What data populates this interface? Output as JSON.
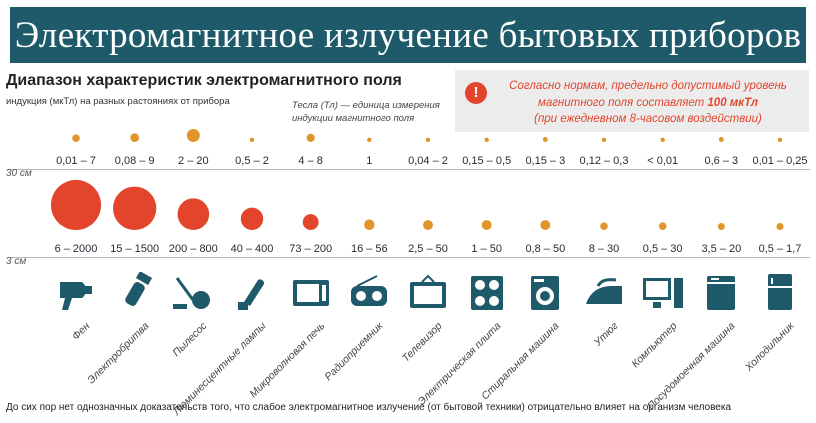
{
  "header": {
    "title": "Электромагнитное излучение бытовых приборов",
    "subtitle": "Диапазон характеристик электромагнитного поля",
    "subnote": "индукция (мкТл) на разных растояниях от прибора",
    "unit_note": "Тесла (Тл) — единица измерения индукции магнитного поля"
  },
  "norm": {
    "icon": "exclamation-icon",
    "line1": "Согласно нормам, предельно допустимый уровень",
    "line2_prefix": "магнитного поля составляет",
    "line2_value": "100 мкТл",
    "line3": "(при ежедневном 8-часовом воздействии)"
  },
  "colors": {
    "banner": "#1f5a6a",
    "accent": "#e2452c",
    "dot_far": "#e0952a"
  },
  "chart_data": {
    "type": "scatter",
    "title": "Диапазон характеристик электромагнитного поля",
    "unit": "мкТл",
    "rows": [
      "30 см",
      "3 см"
    ],
    "categories": [
      "Фен",
      "Электробритва",
      "Пылесос",
      "Люминесцентные лампы",
      "Микроволновая печь",
      "Радиоприемник",
      "Телевизор",
      "Электрическая плита",
      "Стиральная машина",
      "Утюг",
      "Компьютер",
      "Посудомоечная машина",
      "Холодильник"
    ],
    "series": [
      {
        "name": "30 см",
        "labels": [
          "0,01 – 7",
          "0,08 – 9",
          "2 – 20",
          "0,5 – 2",
          "4 – 8",
          "1",
          "0,04 – 2",
          "0,15 – 0,5",
          "0,15 – 3",
          "0,12 – 0,3",
          "< 0,01",
          "0,6 – 3",
          "0,01 – 0,25"
        ],
        "min": [
          0.01,
          0.08,
          2,
          0.5,
          4,
          1,
          0.04,
          0.15,
          0.15,
          0.12,
          0,
          0.6,
          0.01
        ],
        "max": [
          7,
          9,
          20,
          2,
          8,
          1,
          2,
          0.5,
          3,
          0.3,
          0.01,
          3,
          0.25
        ]
      },
      {
        "name": "3 см",
        "labels": [
          "6 – 2000",
          "15 – 1500",
          "200 – 800",
          "40 – 400",
          "73 – 200",
          "16 – 56",
          "2,5 – 50",
          "1 – 50",
          "0,8 – 50",
          "8 – 30",
          "0,5 – 30",
          "3,5 – 20",
          "0,5 – 1,7"
        ],
        "min": [
          6,
          15,
          200,
          40,
          73,
          16,
          2.5,
          1,
          0.8,
          8,
          0.5,
          3.5,
          0.5
        ],
        "max": [
          2000,
          1500,
          800,
          400,
          200,
          56,
          50,
          50,
          50,
          30,
          30,
          20,
          1.7
        ]
      }
    ]
  },
  "devices": [
    {
      "label": "Фен",
      "icon": "hair-dryer-icon"
    },
    {
      "label": "Электробритва",
      "icon": "electric-shaver-icon"
    },
    {
      "label": "Пылесос",
      "icon": "vacuum-cleaner-icon"
    },
    {
      "label": "Люминесцентные лампы",
      "icon": "fluorescent-lamp-icon"
    },
    {
      "label": "Микроволновая печь",
      "icon": "microwave-icon"
    },
    {
      "label": "Радиоприемник",
      "icon": "radio-icon"
    },
    {
      "label": "Телевизор",
      "icon": "tv-icon"
    },
    {
      "label": "Электрическая плита",
      "icon": "electric-stove-icon"
    },
    {
      "label": "Стиральная машина",
      "icon": "washing-machine-icon"
    },
    {
      "label": "Утюг",
      "icon": "iron-icon"
    },
    {
      "label": "Компьютер",
      "icon": "computer-icon"
    },
    {
      "label": "Посудомоечная машина",
      "icon": "dishwasher-icon"
    },
    {
      "label": "Холодильник",
      "icon": "refrigerator-icon"
    }
  ],
  "footer": "До сих пор нет однозначных доказательств того, что слабое электромагнитное излучение (от бытовой техники) отрицательно влияет на организм человека"
}
